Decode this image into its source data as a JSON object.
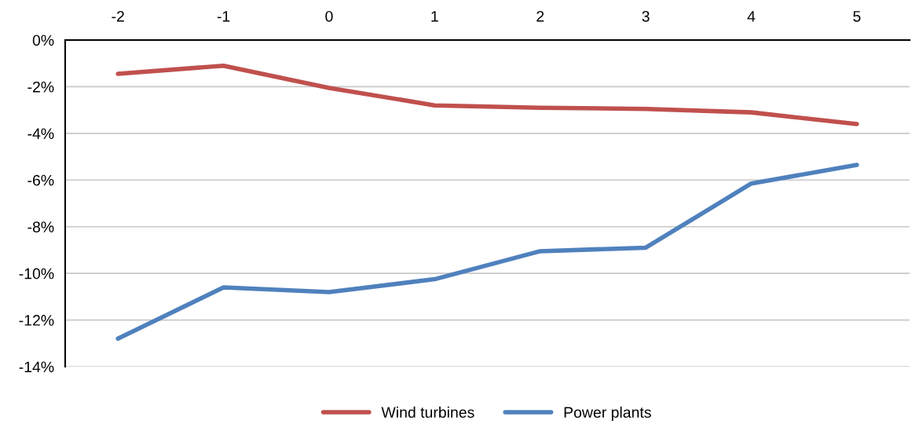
{
  "chart_data": {
    "type": "line",
    "categories": [
      "-2",
      "-1",
      "0",
      "1",
      "2",
      "3",
      "4",
      "5"
    ],
    "series": [
      {
        "name": "Wind turbines",
        "color": "#c0504d",
        "values": [
          -1.45,
          -1.1,
          -2.05,
          -2.8,
          -2.9,
          -2.95,
          -3.1,
          -3.6
        ]
      },
      {
        "name": "Power plants",
        "color": "#4f81bd",
        "values": [
          -12.8,
          -10.6,
          -10.8,
          -10.25,
          -9.05,
          -8.9,
          -6.15,
          -5.35
        ]
      }
    ],
    "ylim": [
      -14,
      0
    ],
    "yticks": [
      {
        "value": 0,
        "label": "0%"
      },
      {
        "value": -2,
        "label": "-2%"
      },
      {
        "value": -4,
        "label": "-4%"
      },
      {
        "value": -6,
        "label": "-6%"
      },
      {
        "value": -8,
        "label": "-8%"
      },
      {
        "value": -10,
        "label": "-10%"
      },
      {
        "value": -12,
        "label": "-12%"
      },
      {
        "value": -14,
        "label": "-14%"
      }
    ],
    "grid": "y",
    "legend": "bottom",
    "marker": "none",
    "line_style": "solid"
  }
}
